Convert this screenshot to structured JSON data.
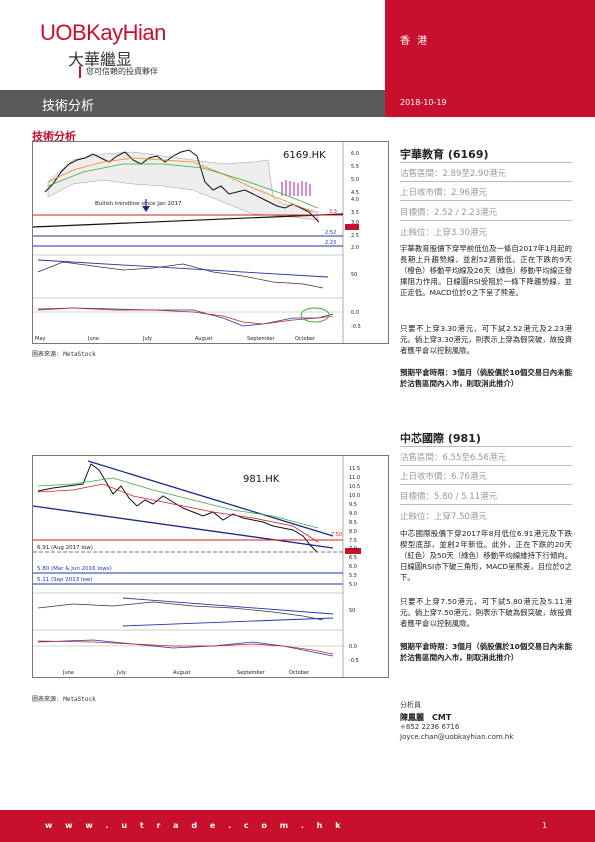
{
  "header": {
    "logo_text": "UOBKayHian",
    "logo_cn": "大華繼显",
    "tagline": "您可信賴的投資夥伴",
    "region": "香 港",
    "date": "2018-10-19",
    "section_title": "技術分析",
    "sub_title": "技術分析"
  },
  "charts": [
    {
      "ticker": "6169.HK",
      "annotation": "Bullish trendline since Jan 2017",
      "price_axis": [
        "6.0",
        "5.5",
        "5.0",
        "4.5",
        "4.0",
        "3.5",
        "3.0",
        "2.5",
        "2.0"
      ],
      "level_labels": [
        "3.3",
        "2.52",
        "2.23"
      ],
      "rsi_axis": [
        "50"
      ],
      "macd_axis": [
        "0.0",
        "-0.5"
      ],
      "months": [
        "May",
        "June",
        "July",
        "August",
        "September",
        "October"
      ],
      "source": "圖表來源: MetaStock"
    },
    {
      "ticker": "981.HK",
      "price_axis": [
        "11.5",
        "11.0",
        "10.5",
        "10.0",
        "9.5",
        "9.0",
        "8.5",
        "8.0",
        "7.5",
        "7.0",
        "6.5",
        "6.0",
        "5.5",
        "5.0"
      ],
      "level_labels": [
        "7.50",
        "6.91 (Aug 2017 low)",
        "5.80 (Mar & Jun 2016 lows)",
        "5.11 (Sep 2013 low)"
      ],
      "rsi_axis": [
        "50"
      ],
      "macd_axis": [
        "0.0",
        "-0.5"
      ],
      "months": [
        "June",
        "July",
        "August",
        "September",
        "October"
      ],
      "source": "圖表來源: MetaStock"
    }
  ],
  "stocks": [
    {
      "name": "宇華教育 (6169)",
      "sell_range": "沽售區間：2.89至2.90港元",
      "close": "上日收市價：2.96港元",
      "target": "目標價：2.52 / 2.23港元",
      "stop": "止蝕位：上穿3.30港元",
      "p1": "宇華教育股價下穿早前低位及一條自2017年1月起的長期上升趨勢線，並創52週新低。正在下跌的9天（橙色）移動平均線及26天（綠色）移動平均線正發揮阻力作用。日線圖RSI受阻於一條下降趨勢線，並正走低。MACD位於0之下呈了熊差。",
      "p2": "只要不上穿3.30港元，可下試2.52港元及2.23港元。倘上穿3.30港元，則表示上穿為假突破，故投資者應平倉以控制風險。",
      "p3": "預期平倉時限：3個月（倘股價於10個交易日內未能於沽售區間內入市，則取消此推介）"
    },
    {
      "name": "中芯國際 (981)",
      "sell_range": "沽售區間：6.55至6.56港元",
      "close": "上日收市價：6.76港元",
      "target": "目標價：5.80 / 5.11港元",
      "stop": "止蝕位：上穿7.50港元",
      "p1": "中芯國際股價下穿2017年8月低位6.91港元及下跌楔型底部，並創2年新低。此外，正在下跌的20天（紅色）及50天（綠色）移動平均線維持下行傾向。日線圖RSI亦下破三角形，MACD呈熊差，且位於0之下。",
      "p2": "只要不上穿7.50港元，可下試5.80港元及5.11港元。倘上穿7.50港元，則表示下破為假突破，故投資者應平倉以控制風險。",
      "p3": "預期平倉時限：3個月（倘股價於10個交易日內未能於沽售區間內入市，則取消此推介）"
    }
  ],
  "analyst": {
    "label": "分析員",
    "name": "陳鳳麗　CMT",
    "phone": "+852 2236 6716",
    "email": "Joyce.chan@uobkayhian.com.hk"
  },
  "footer": {
    "url": "w w w . u t r a d e . c o m . h k",
    "page": "1"
  },
  "colors": {
    "brand_red": "#c8102e",
    "header_grey": "#5a5a5a"
  }
}
